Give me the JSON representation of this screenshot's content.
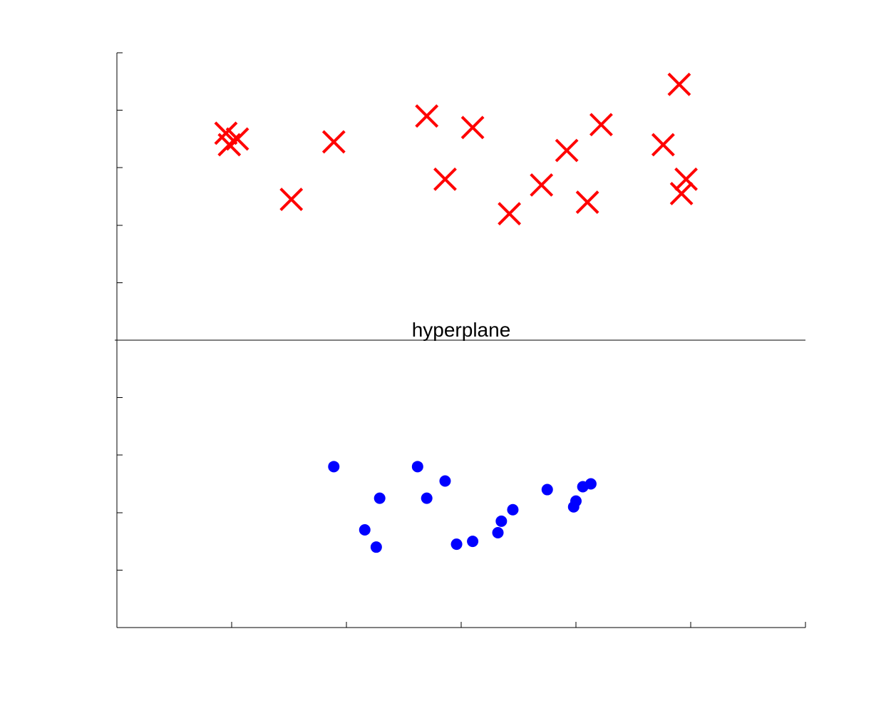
{
  "chart_data": {
    "type": "scatter",
    "title": "",
    "xlabel": "",
    "ylabel": "",
    "xlim": [
      0,
      6
    ],
    "ylim": [
      -5,
      5
    ],
    "x_ticks": [
      0,
      1,
      2,
      3,
      4,
      5,
      6
    ],
    "y_ticks": [
      -5,
      -4,
      -3,
      -2,
      -1,
      0,
      1,
      2,
      3,
      4,
      5
    ],
    "tick_labels_shown": false,
    "grid": false,
    "annotations": [
      {
        "text": "hyperplane",
        "y": 0
      }
    ],
    "hyperplane": {
      "y": 0,
      "x_range": [
        0,
        6
      ]
    },
    "series": [
      {
        "marker": "x",
        "color": "#ff0000",
        "points": [
          [
            0.95,
            3.6
          ],
          [
            0.98,
            3.4
          ],
          [
            1.05,
            3.5
          ],
          [
            1.52,
            2.45
          ],
          [
            1.89,
            3.45
          ],
          [
            2.7,
            3.9
          ],
          [
            2.86,
            2.8
          ],
          [
            3.1,
            3.7
          ],
          [
            3.42,
            2.2
          ],
          [
            3.7,
            2.7
          ],
          [
            3.92,
            3.3
          ],
          [
            4.1,
            2.4
          ],
          [
            4.22,
            3.75
          ],
          [
            4.76,
            3.4
          ],
          [
            4.9,
            4.45
          ],
          [
            4.92,
            2.55
          ],
          [
            4.96,
            2.8
          ]
        ]
      },
      {
        "marker": "o",
        "color": "#0000ff",
        "points": [
          [
            1.89,
            -2.2
          ],
          [
            2.16,
            -3.3
          ],
          [
            2.26,
            -3.6
          ],
          [
            2.29,
            -2.75
          ],
          [
            2.62,
            -2.2
          ],
          [
            2.7,
            -2.75
          ],
          [
            2.86,
            -2.45
          ],
          [
            2.96,
            -3.55
          ],
          [
            3.1,
            -3.5
          ],
          [
            3.32,
            -3.35
          ],
          [
            3.35,
            -3.15
          ],
          [
            3.45,
            -2.95
          ],
          [
            3.75,
            -2.6
          ],
          [
            3.98,
            -2.9
          ],
          [
            4.0,
            -2.8
          ],
          [
            4.06,
            -2.55
          ],
          [
            4.13,
            -2.5
          ]
        ]
      }
    ]
  }
}
